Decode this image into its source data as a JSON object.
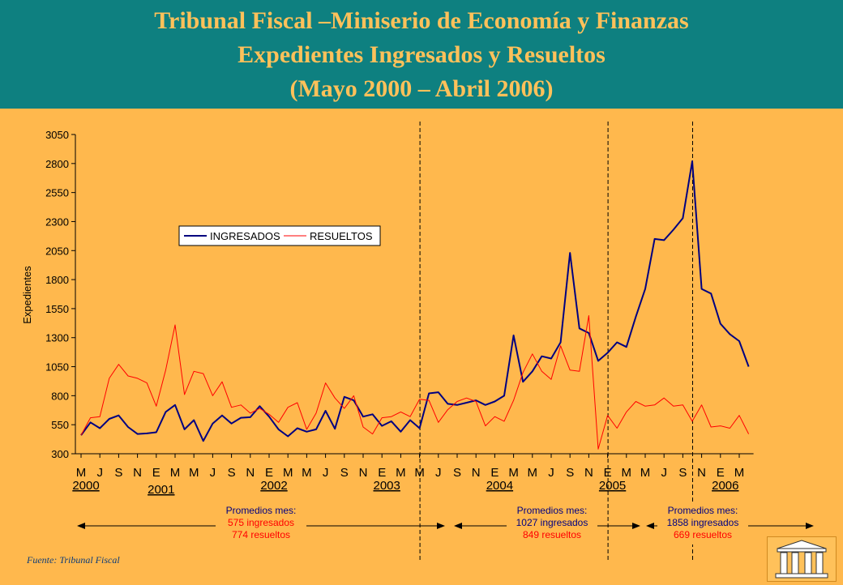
{
  "header": {
    "title_line1": "Tribunal Fiscal –Miniserio de Economía y Finanzas",
    "title_line2": "Expedientes Ingresados y Resueltos",
    "title_line3": "(Mayo 2000 – Abril 2006)"
  },
  "chart_data": {
    "type": "line",
    "ylabel": "Expedientes",
    "ylim": [
      300,
      3050
    ],
    "yticks": [
      300,
      550,
      800,
      1050,
      1300,
      1550,
      1800,
      2050,
      2300,
      2550,
      2800,
      3050
    ],
    "month_labels": [
      "M",
      "J",
      "S",
      "N",
      "E",
      "M",
      "M",
      "J",
      "S",
      "N",
      "E",
      "M",
      "M",
      "J",
      "S",
      "N",
      "E",
      "M",
      "M",
      "J",
      "S",
      "N",
      "E",
      "M",
      "M",
      "J",
      "S",
      "N",
      "E",
      "M",
      "M",
      "J",
      "S",
      "N",
      "E",
      "M"
    ],
    "year_labels": [
      {
        "label": "2000",
        "month_index": 0
      },
      {
        "label": "2001",
        "month_index": 4
      },
      {
        "label": "2002",
        "month_index": 10
      },
      {
        "label": "2003",
        "month_index": 16
      },
      {
        "label": "2004",
        "month_index": 22
      },
      {
        "label": "2005",
        "month_index": 28
      },
      {
        "label": "2006",
        "month_index": 34
      }
    ],
    "legend": {
      "placement": "top-left"
    },
    "series": [
      {
        "name": "INGRESADOS",
        "color": "#000080",
        "values": [
          460,
          570,
          520,
          600,
          630,
          530,
          470,
          475,
          485,
          660,
          720,
          510,
          590,
          410,
          560,
          630,
          560,
          610,
          615,
          710,
          620,
          510,
          450,
          520,
          490,
          510,
          670,
          515,
          790,
          760,
          620,
          640,
          540,
          580,
          490,
          590,
          520,
          820,
          830,
          730,
          720,
          740,
          760,
          720,
          750,
          800,
          1320,
          920,
          1010,
          1140,
          1120,
          1260,
          2030,
          1380,
          1340,
          1100,
          1170,
          1260,
          1220,
          1480,
          1720,
          2150,
          2140,
          2230,
          2330,
          2820,
          1720,
          1680,
          1420,
          1330,
          1270,
          1050
        ]
      },
      {
        "name": "RESUELTOS",
        "color": "#FF0000",
        "values": [
          460,
          610,
          620,
          950,
          1070,
          970,
          950,
          910,
          710,
          1020,
          1410,
          810,
          1010,
          990,
          800,
          920,
          700,
          720,
          650,
          690,
          640,
          570,
          700,
          740,
          510,
          650,
          910,
          780,
          690,
          800,
          530,
          470,
          610,
          620,
          660,
          620,
          770,
          760,
          570,
          680,
          750,
          780,
          750,
          540,
          620,
          580,
          760,
          1000,
          1160,
          1010,
          940,
          1230,
          1020,
          1010,
          1490,
          340,
          630,
          520,
          660,
          750,
          710,
          720,
          780,
          710,
          720,
          580,
          720,
          530,
          540,
          520,
          630,
          470
        ]
      }
    ],
    "dividers_after_month_index": [
      36,
      56,
      65
    ],
    "promedios": [
      {
        "title": "Promedios mes:",
        "ingresados": "575 ingresados",
        "resueltos": "774 resueltos"
      },
      {
        "title": "Promedios mes:",
        "ingresados": "1027 ingresados",
        "resueltos": "849 resueltos"
      },
      {
        "title": "Promedios mes:",
        "ingresados": "1858 ingresados",
        "resueltos": "669 resueltos"
      }
    ]
  },
  "footer": {
    "source": "Fuente:  Tribunal Fiscal"
  },
  "colors": {
    "header_bg": "#0E8080",
    "background": "#FFB84D",
    "title": "#FFC15A",
    "ingresados": "#000080",
    "resueltos": "#FF0000"
  }
}
